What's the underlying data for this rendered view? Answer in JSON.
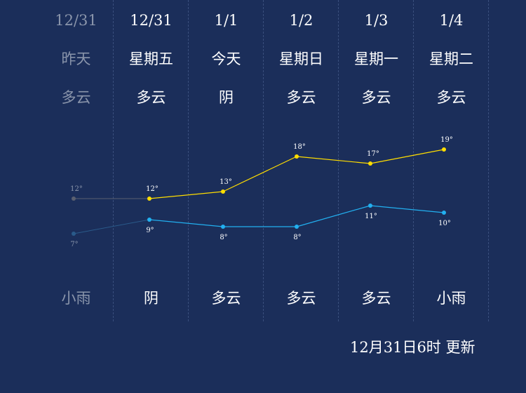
{
  "days": [
    {
      "date": "12/31",
      "name": "昨天",
      "weather_day": "多云",
      "weather_night": "小雨",
      "high": 12,
      "low": 7,
      "high_label": "12°",
      "low_label": "7°",
      "past": true
    },
    {
      "date": "12/31",
      "name": "星期五",
      "weather_day": "多云",
      "weather_night": "阴",
      "high": 12,
      "low": 9,
      "high_label": "12°",
      "low_label": "9°",
      "past": false
    },
    {
      "date": "1/1",
      "name": "今天",
      "weather_day": "阴",
      "weather_night": "多云",
      "high": 13,
      "low": 8,
      "high_label": "13°",
      "low_label": "8°",
      "past": false
    },
    {
      "date": "1/2",
      "name": "星期日",
      "weather_day": "多云",
      "weather_night": "多云",
      "high": 18,
      "low": 8,
      "high_label": "18°",
      "low_label": "8°",
      "past": false
    },
    {
      "date": "1/3",
      "name": "星期一",
      "weather_day": "多云",
      "weather_night": "多云",
      "high": 17,
      "low": 11,
      "high_label": "17°",
      "low_label": "11°",
      "past": false
    },
    {
      "date": "1/4",
      "name": "星期二",
      "weather_day": "多云",
      "weather_night": "小雨",
      "high": 19,
      "low": 10,
      "high_label": "19°",
      "low_label": "10°",
      "past": false
    }
  ],
  "colors": {
    "background": "#1b2e5a",
    "high_line": "#ffdd00",
    "low_line": "#22b0f0",
    "past_point": "#5a6070",
    "past_low_point": "#2a5a8a",
    "past_text": "#8a95ab",
    "label_text": "#ffffff"
  },
  "update_time": "12月31日6时 更新"
}
